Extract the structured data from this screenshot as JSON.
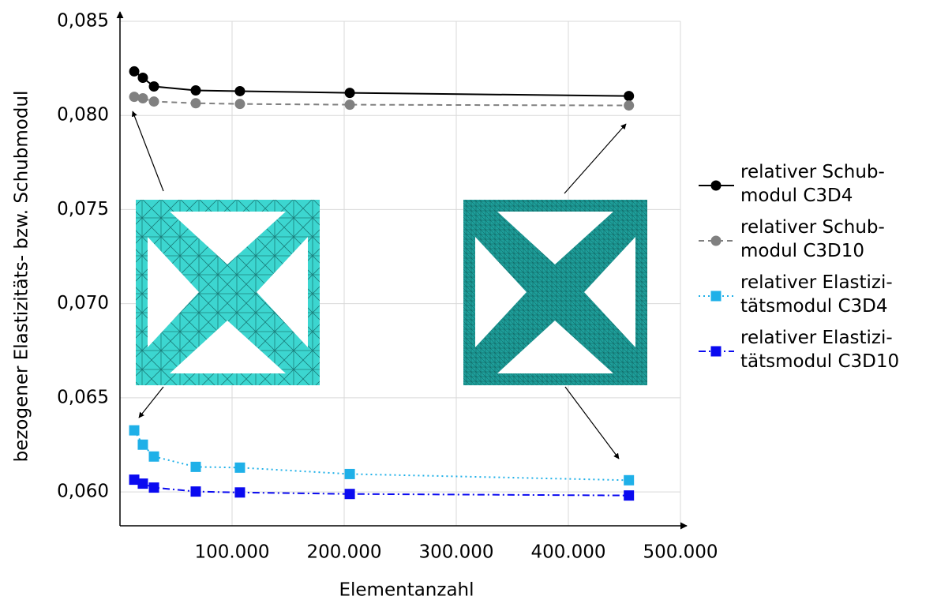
{
  "chart_data": {
    "type": "line",
    "xlabel": "Elementanzahl",
    "ylabel": "bezogener Elastizitäts- bzw. Schubmodul",
    "x": [
      12700,
      20400,
      30300,
      67600,
      107000,
      205000,
      454000
    ],
    "xlim": [
      0,
      500000
    ],
    "ylim": [
      0.0582,
      0.085
    ],
    "xticks": [
      {
        "value": 100000,
        "label": "100.000"
      },
      {
        "value": 200000,
        "label": "200.000"
      },
      {
        "value": 300000,
        "label": "300.000"
      },
      {
        "value": 400000,
        "label": "400.000"
      },
      {
        "value": 500000,
        "label": "500.000"
      }
    ],
    "yticks": [
      {
        "value": 0.06,
        "label": "0,060"
      },
      {
        "value": 0.065,
        "label": "0,065"
      },
      {
        "value": 0.07,
        "label": "0,070"
      },
      {
        "value": 0.075,
        "label": "0,075"
      },
      {
        "value": 0.08,
        "label": "0,080"
      },
      {
        "value": 0.085,
        "label": "0,085"
      }
    ],
    "grid": true,
    "legend": "right",
    "series": [
      {
        "name": "relativer Schub-\nmodul C3D4",
        "color": "#000000",
        "dash": "solid",
        "marker": "circle",
        "values": [
          0.08234,
          0.082,
          0.08154,
          0.08133,
          0.08129,
          0.0812,
          0.08103
        ]
      },
      {
        "name": "relativer Schub-\nmodul C3D10",
        "color": "#808080",
        "dash": "dashed",
        "marker": "circle",
        "values": [
          0.08099,
          0.08091,
          0.08074,
          0.08065,
          0.08061,
          0.08057,
          0.08053
        ]
      },
      {
        "name": "relativer Elastizi-\ntätsmodul C3D4",
        "color": "#1fb0e8",
        "dash": "dotted",
        "marker": "square",
        "values": [
          0.06327,
          0.06251,
          0.06188,
          0.06133,
          0.06129,
          0.06095,
          0.06062
        ]
      },
      {
        "name": "relativer Elastizi-\ntätsmodul C3D10",
        "color": "#0a0af0",
        "dash": "dashdot",
        "marker": "square",
        "values": [
          0.06065,
          0.06044,
          0.06023,
          0.06002,
          0.05997,
          0.05989,
          0.05981
        ]
      }
    ]
  }
}
